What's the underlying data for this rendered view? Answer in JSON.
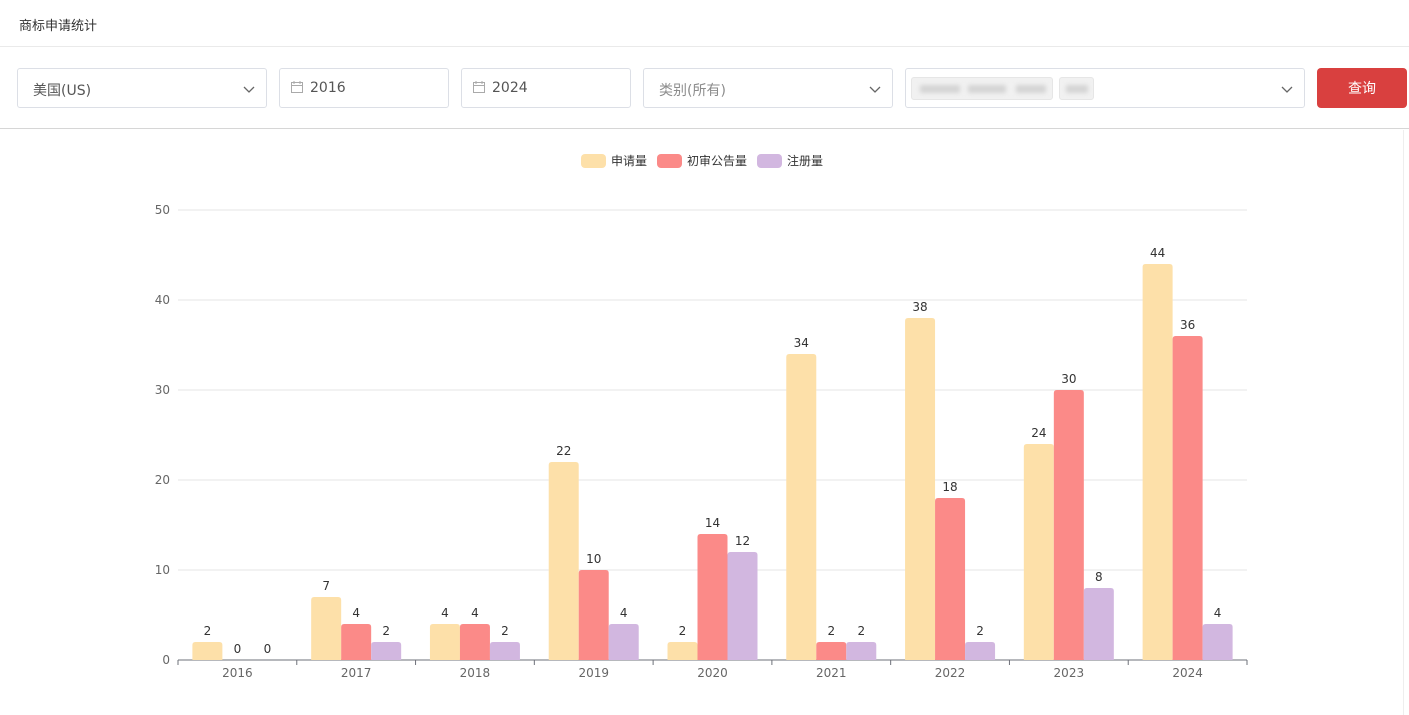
{
  "header": {
    "title": "商标申请统计"
  },
  "filters": {
    "country": "美国(US)",
    "start_year": "2016",
    "end_year": "2024",
    "category_placeholder": "类别(所有)",
    "query_label": "查询"
  },
  "colors": {
    "applications": "#fde0a9",
    "preliminary": "#fb8a88",
    "registrations": "#d2b7e0",
    "query_button": "#d9403f"
  },
  "icons": {
    "date": "calendar-icon",
    "dropdown": "chevron-down-icon"
  },
  "chart_data": {
    "type": "bar",
    "categories": [
      "2016",
      "2017",
      "2018",
      "2019",
      "2020",
      "2021",
      "2022",
      "2023",
      "2024"
    ],
    "series": [
      {
        "name": "申请量",
        "values": [
          2,
          7,
          4,
          22,
          2,
          34,
          38,
          24,
          44
        ]
      },
      {
        "name": "初审公告量",
        "values": [
          0,
          4,
          4,
          10,
          14,
          2,
          18,
          30,
          36
        ]
      },
      {
        "name": "注册量",
        "values": [
          0,
          2,
          2,
          4,
          12,
          2,
          2,
          8,
          4
        ]
      }
    ],
    "ylim": [
      0,
      50
    ],
    "yticks": [
      0,
      10,
      20,
      30,
      40,
      50
    ],
    "legend_position": "top-center",
    "grid": true,
    "data_labels": true
  }
}
